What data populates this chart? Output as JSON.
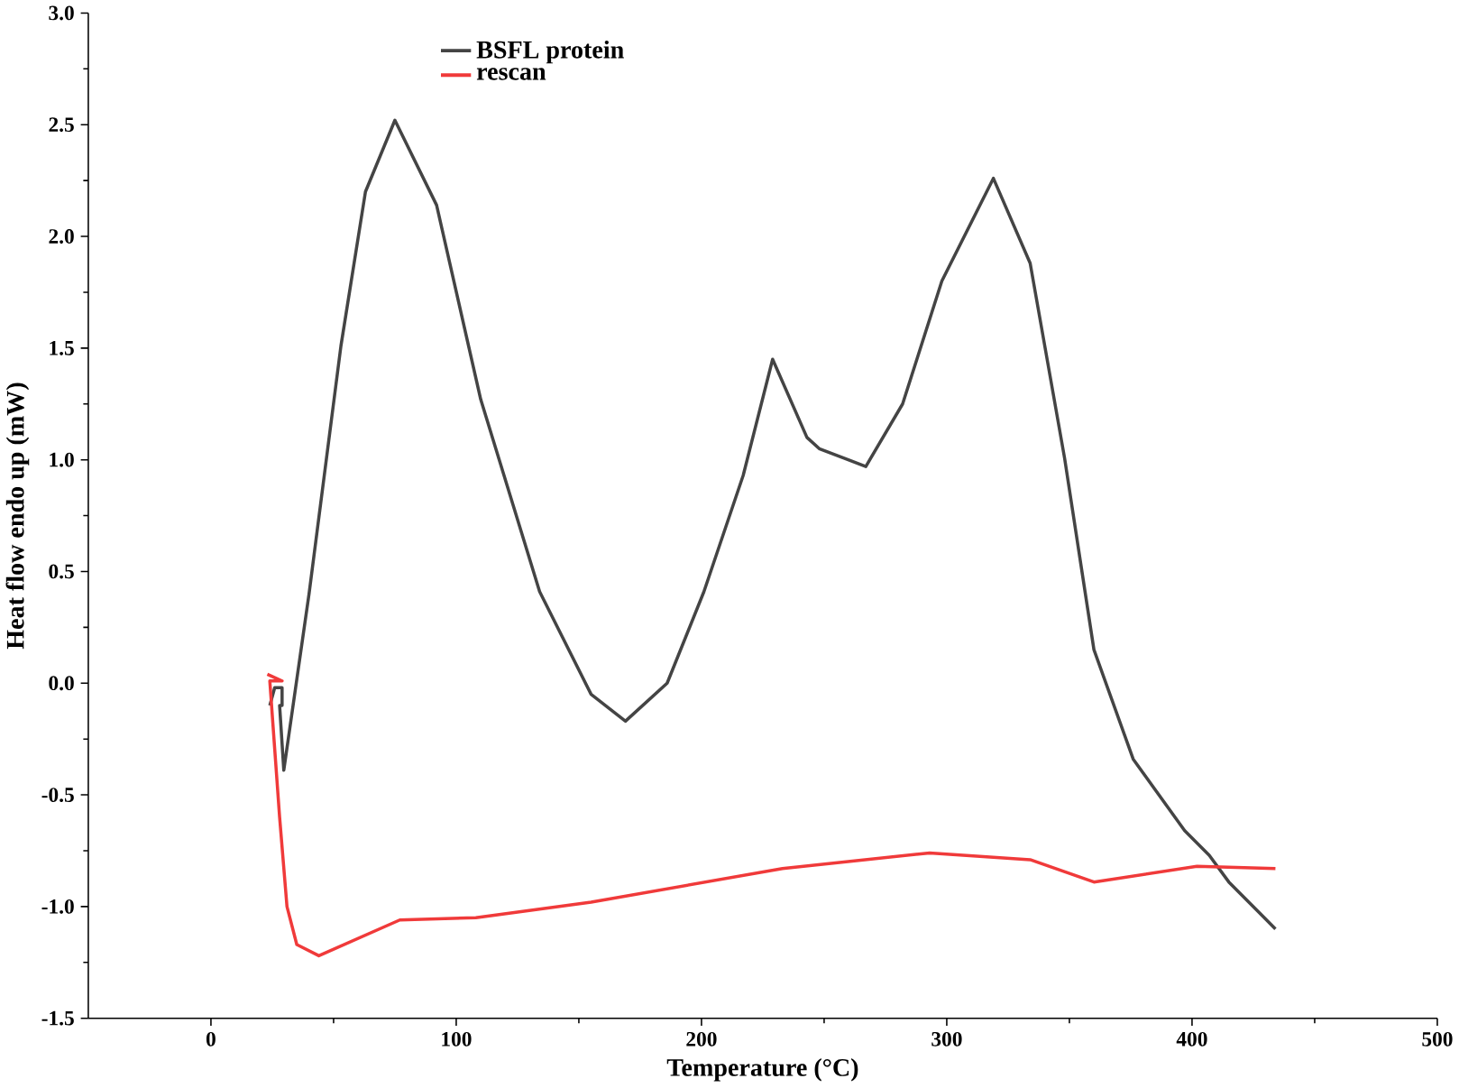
{
  "chart_data": {
    "type": "line",
    "xlabel": "Temperature (°C)",
    "ylabel": "Heat flow endo up (mW)",
    "xlim": [
      -50,
      500
    ],
    "xticks": [
      0,
      100,
      200,
      300,
      400,
      500
    ],
    "ylim": [
      -1.5,
      3.0
    ],
    "yticks": [
      {
        "value": -1.5,
        "label": "-1.5"
      },
      {
        "value": -1.0,
        "label": "-1.0"
      },
      {
        "value": -0.5,
        "label": "-0.5"
      },
      {
        "value": 0,
        "label": "0.0"
      },
      {
        "value": 0.5,
        "label": "0.5"
      },
      {
        "value": 1.0,
        "label": "1.0"
      },
      {
        "value": 1.5,
        "label": "1.5"
      },
      {
        "value": 2.0,
        "label": "2.0"
      },
      {
        "value": 2.5,
        "label": "2.5"
      },
      {
        "value": 3.0,
        "label": "3.0"
      }
    ],
    "grid": false,
    "legend": "top",
    "marker": "none",
    "line_style": "solid",
    "series": [
      {
        "name": "BSFL protein",
        "color": "#444444",
        "x": [
          24,
          26,
          29,
          29,
          28,
          29.7,
          40,
          53,
          63,
          75,
          92,
          110,
          134,
          155,
          169,
          186,
          201,
          217,
          229,
          243,
          248,
          267,
          282,
          298,
          319,
          334,
          348,
          360,
          376,
          397,
          407,
          415,
          434
        ],
        "values": [
          -0.1,
          -0.02,
          -0.02,
          -0.1,
          -0.1,
          -0.39,
          0.4,
          1.51,
          2.2,
          2.52,
          2.14,
          1.27,
          0.41,
          -0.05,
          -0.17,
          0.0,
          0.41,
          0.93,
          1.45,
          1.1,
          1.05,
          0.97,
          1.25,
          1.8,
          2.26,
          1.88,
          1.01,
          0.15,
          -0.34,
          -0.66,
          -0.77,
          -0.89,
          -1.1
        ]
      },
      {
        "name": "rescan",
        "color": "#f03a3a",
        "x": [
          23,
          29,
          24,
          28,
          31,
          35,
          44,
          77,
          108,
          155,
          233,
          293,
          334,
          360,
          402,
          434
        ],
        "values": [
          0.04,
          0.01,
          0.01,
          -0.6,
          -1.0,
          -1.17,
          -1.22,
          -1.06,
          -1.05,
          -0.98,
          -0.83,
          -0.76,
          -0.79,
          -0.89,
          -0.82,
          -0.83
        ]
      }
    ]
  }
}
